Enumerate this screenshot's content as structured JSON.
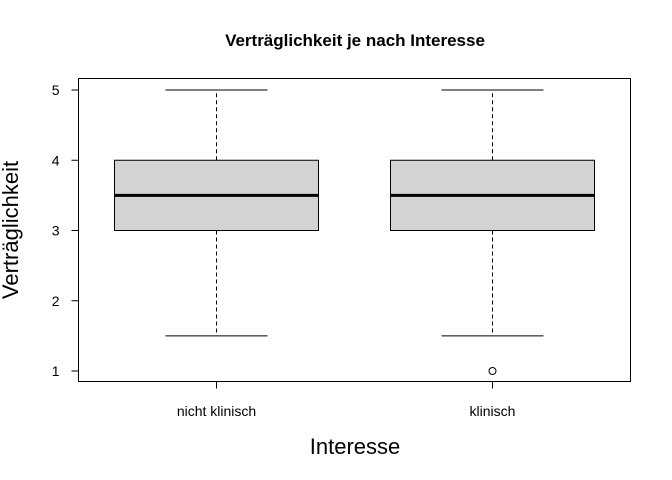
{
  "chart_data": {
    "type": "boxplot",
    "title": "Verträglichkeit je nach Interesse",
    "xlabel": "Interesse",
    "ylabel": "Verträglichkeit",
    "ylim": [
      0.84,
      5.16
    ],
    "yticks": [
      1,
      2,
      3,
      4,
      5
    ],
    "categories": [
      "nicht klinisch",
      "klinisch"
    ],
    "boxes": [
      {
        "name": "nicht klinisch",
        "whisker_low": 1.5,
        "q1": 3.0,
        "median": 3.5,
        "q3": 4.0,
        "whisker_high": 5.0,
        "outliers": []
      },
      {
        "name": "klinisch",
        "whisker_low": 1.5,
        "q1": 3.0,
        "median": 3.5,
        "q3": 4.0,
        "whisker_high": 5.0,
        "outliers": [
          1
        ]
      }
    ],
    "box_fill": "#d3d3d3",
    "line_color": "#000000",
    "grid": false
  }
}
